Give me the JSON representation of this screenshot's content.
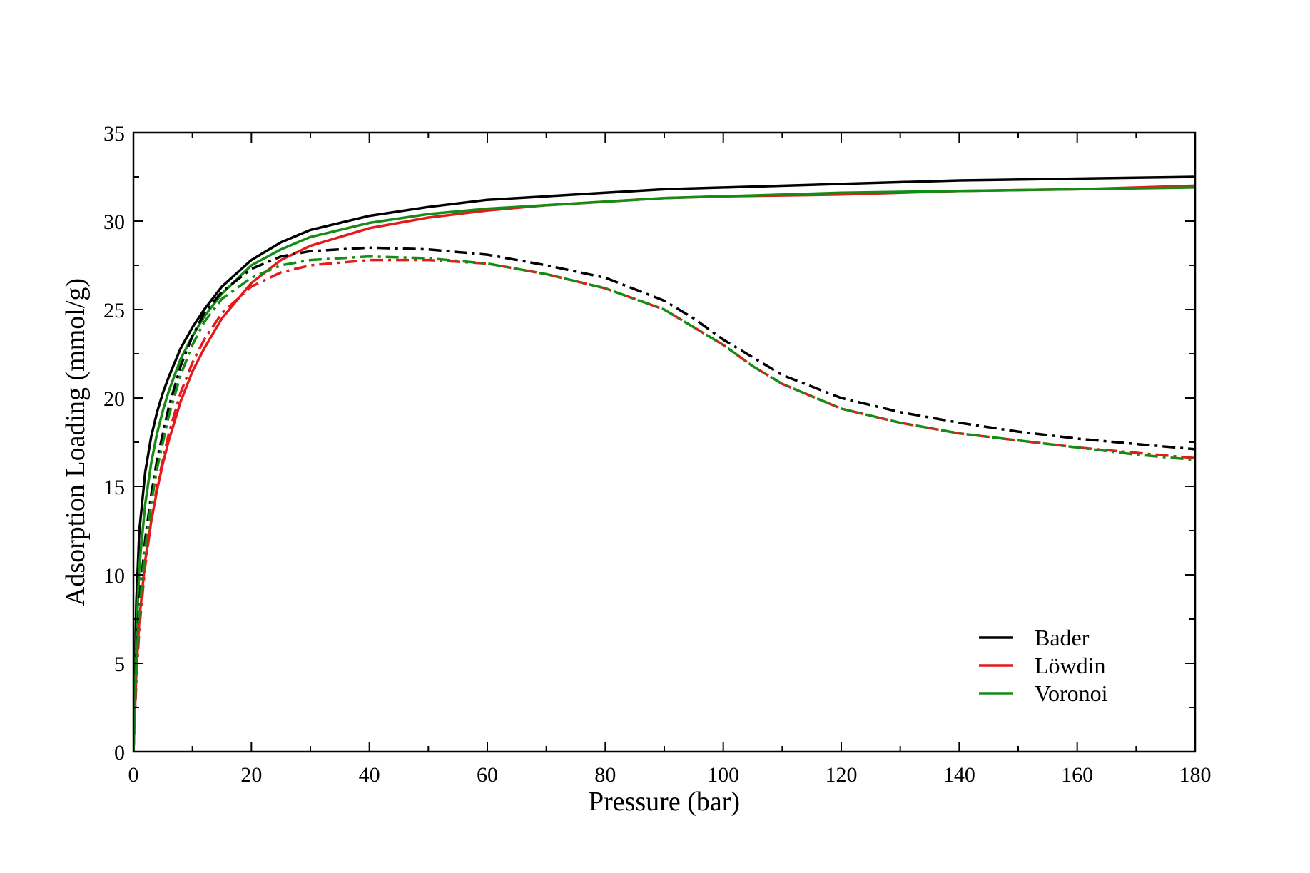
{
  "chart_data": {
    "type": "line",
    "title": "",
    "xlabel": "Pressure (bar)",
    "ylabel": "Adsorption Loading (mmol/g)",
    "xlim": [
      0,
      180
    ],
    "ylim": [
      0,
      35
    ],
    "xticks": [
      0,
      20,
      40,
      60,
      80,
      100,
      120,
      140,
      160,
      180
    ],
    "yticks": [
      0,
      5,
      10,
      15,
      20,
      25,
      30,
      35
    ],
    "x_minor_step": 10,
    "y_minor_step": 2.5,
    "grid": false,
    "legend_position": "bottom-right",
    "legend": [
      {
        "label": "Bader",
        "color": "#000000"
      },
      {
        "label": "Löwdin",
        "color": "#e41a1c"
      },
      {
        "label": "Voronoi",
        "color": "#168c16"
      }
    ],
    "series": [
      {
        "name": "Bader (solid)",
        "color": "#000000",
        "style": "solid",
        "x": [
          0,
          0.5,
          1,
          2,
          3,
          4,
          5,
          6,
          8,
          10,
          12,
          15,
          20,
          25,
          30,
          40,
          50,
          60,
          70,
          80,
          90,
          100,
          120,
          140,
          160,
          180
        ],
        "y": [
          0,
          8.5,
          12.5,
          15.8,
          17.8,
          19.2,
          20.3,
          21.2,
          22.8,
          24.0,
          25.0,
          26.3,
          27.8,
          28.8,
          29.5,
          30.3,
          30.8,
          31.2,
          31.4,
          31.6,
          31.8,
          31.9,
          32.1,
          32.3,
          32.4,
          32.5
        ]
      },
      {
        "name": "Löwdin (solid)",
        "color": "#e41a1c",
        "style": "solid",
        "x": [
          0,
          0.5,
          1,
          2,
          3,
          4,
          5,
          6,
          8,
          10,
          12,
          15,
          20,
          25,
          30,
          40,
          50,
          60,
          70,
          80,
          90,
          100,
          120,
          140,
          160,
          180
        ],
        "y": [
          0,
          4.5,
          7.5,
          10.8,
          13.0,
          14.8,
          16.3,
          17.6,
          19.8,
          21.5,
          22.8,
          24.5,
          26.5,
          27.8,
          28.6,
          29.6,
          30.2,
          30.6,
          30.9,
          31.1,
          31.3,
          31.4,
          31.5,
          31.7,
          31.8,
          32.0
        ]
      },
      {
        "name": "Voronoi (solid)",
        "color": "#168c16",
        "style": "solid",
        "x": [
          0,
          0.5,
          1,
          2,
          3,
          4,
          5,
          6,
          8,
          10,
          12,
          15,
          20,
          25,
          30,
          40,
          50,
          60,
          70,
          80,
          90,
          100,
          120,
          140,
          160,
          180
        ],
        "y": [
          0,
          6.5,
          10.5,
          14.0,
          16.3,
          18.0,
          19.3,
          20.4,
          22.2,
          23.5,
          24.6,
          25.9,
          27.5,
          28.4,
          29.1,
          29.9,
          30.4,
          30.7,
          30.9,
          31.1,
          31.3,
          31.4,
          31.6,
          31.7,
          31.8,
          31.9
        ]
      },
      {
        "name": "Bader (dash-dot)",
        "color": "#000000",
        "style": "dashdot",
        "x": [
          0,
          0.5,
          1,
          2,
          3,
          4,
          6,
          8,
          10,
          12,
          15,
          20,
          25,
          30,
          40,
          50,
          60,
          70,
          80,
          90,
          95,
          100,
          105,
          110,
          120,
          130,
          140,
          150,
          160,
          170,
          180
        ],
        "y": [
          0,
          5.5,
          8.5,
          12.0,
          14.5,
          16.5,
          19.5,
          21.8,
          23.5,
          24.8,
          26.0,
          27.3,
          28.0,
          28.3,
          28.5,
          28.4,
          28.1,
          27.5,
          26.8,
          25.5,
          24.5,
          23.3,
          22.3,
          21.3,
          20.0,
          19.2,
          18.6,
          18.1,
          17.7,
          17.4,
          17.1
        ]
      },
      {
        "name": "Löwdin (dash-dot)",
        "color": "#e41a1c",
        "style": "dashdot",
        "x": [
          0,
          0.5,
          1,
          2,
          3,
          4,
          6,
          8,
          10,
          12,
          15,
          20,
          25,
          30,
          40,
          50,
          60,
          70,
          80,
          90,
          95,
          100,
          105,
          110,
          120,
          130,
          140,
          150,
          160,
          170,
          180
        ],
        "y": [
          0,
          4.0,
          7.0,
          10.5,
          13.0,
          15.0,
          18.0,
          20.3,
          22.0,
          23.3,
          24.8,
          26.3,
          27.1,
          27.5,
          27.8,
          27.8,
          27.6,
          27.0,
          26.2,
          25.0,
          24.0,
          23.0,
          21.8,
          20.8,
          19.4,
          18.6,
          18.0,
          17.6,
          17.2,
          16.9,
          16.6
        ]
      },
      {
        "name": "Voronoi (dash-dot)",
        "color": "#168c16",
        "style": "dashdot",
        "x": [
          0,
          0.5,
          1,
          2,
          3,
          4,
          6,
          8,
          10,
          12,
          15,
          20,
          25,
          30,
          40,
          50,
          60,
          70,
          80,
          90,
          95,
          100,
          105,
          110,
          120,
          130,
          140,
          150,
          160,
          170,
          180
        ],
        "y": [
          0,
          5.0,
          8.0,
          11.5,
          14.0,
          16.0,
          19.0,
          21.3,
          23.0,
          24.3,
          25.6,
          26.8,
          27.5,
          27.8,
          28.0,
          27.9,
          27.6,
          27.0,
          26.2,
          25.0,
          24.0,
          23.0,
          21.8,
          20.8,
          19.4,
          18.6,
          18.0,
          17.6,
          17.2,
          16.8,
          16.5
        ]
      }
    ]
  }
}
